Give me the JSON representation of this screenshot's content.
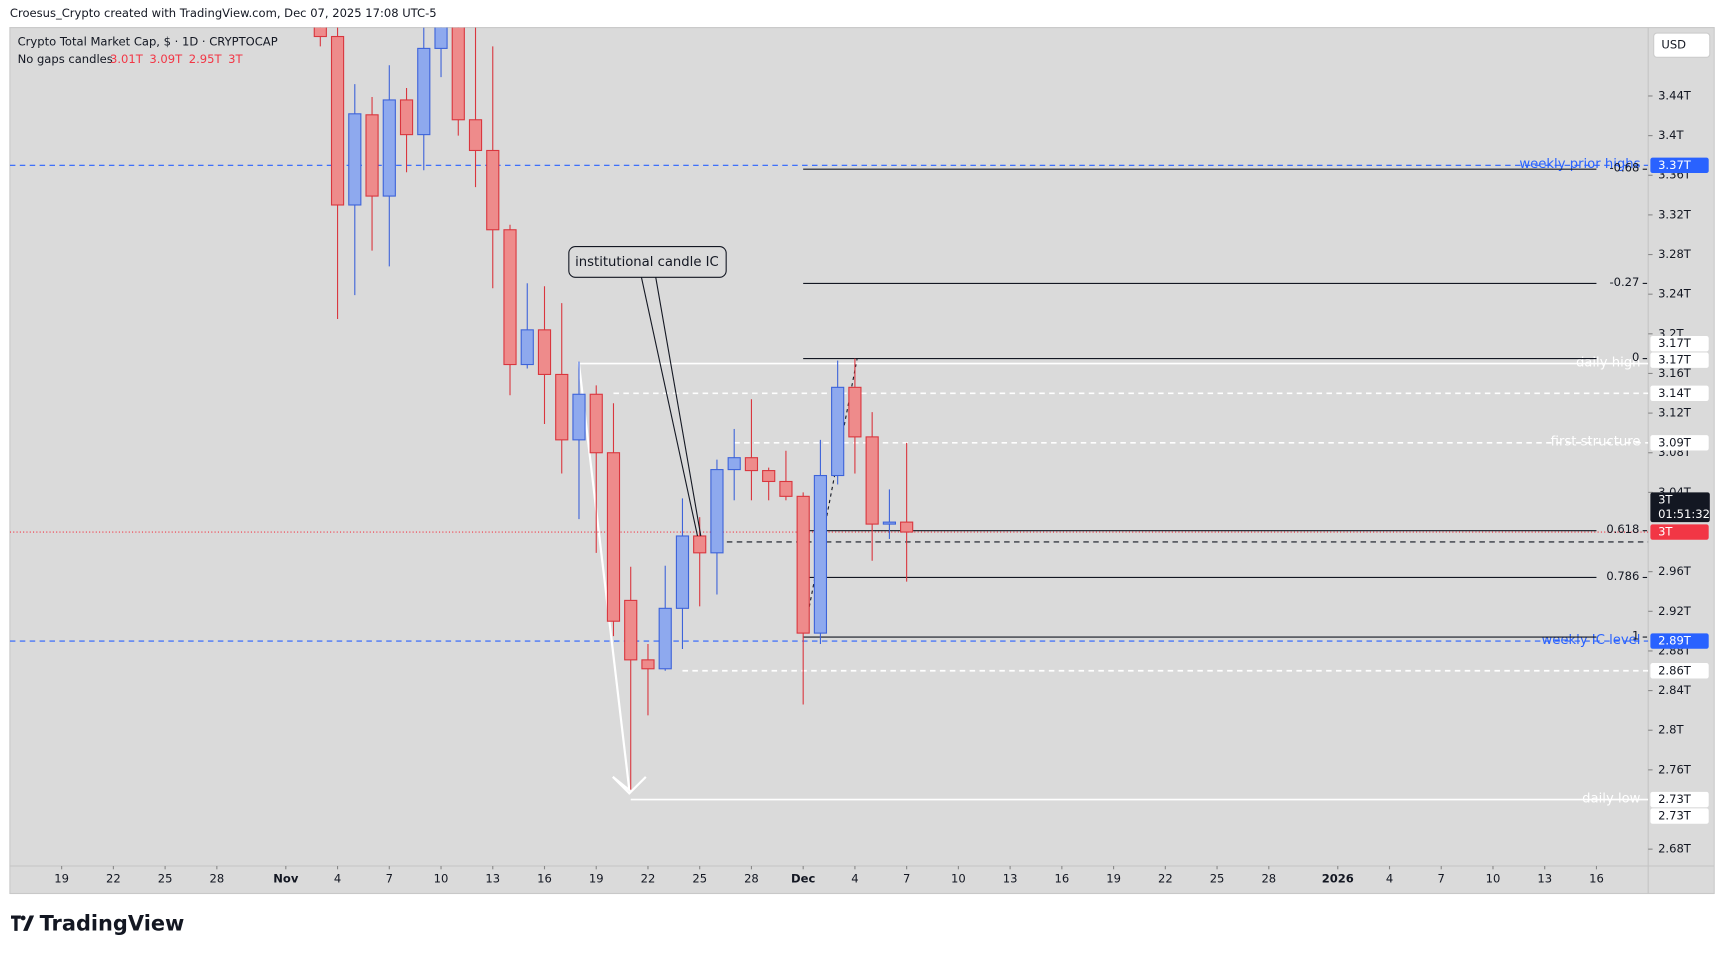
{
  "header": {
    "credit": "Croesus_Crypto created with TradingView.com, Dec 07, 2025 17:08 UTC-5",
    "logo": "TradingView",
    "currency": "USD"
  },
  "chart_data": {
    "type": "candlestick",
    "legend": {
      "title": "Crypto Total Market Cap, $ · 1D · CRYPTOCAP",
      "style": "No gaps candles",
      "values": [
        "3.01T",
        "3.09T",
        "2.95T",
        "3T"
      ]
    },
    "x": [
      "2025-11-03",
      "2025-11-04",
      "2025-11-05",
      "2025-11-06",
      "2025-11-07",
      "2025-11-08",
      "2025-11-09",
      "2025-11-10",
      "2025-11-11",
      "2025-11-12",
      "2025-11-13",
      "2025-11-14",
      "2025-11-15",
      "2025-11-16",
      "2025-11-17",
      "2025-11-18",
      "2025-11-19",
      "2025-11-20",
      "2025-11-21",
      "2025-11-22",
      "2025-11-23",
      "2025-11-24",
      "2025-11-25",
      "2025-11-26",
      "2025-11-27",
      "2025-11-28",
      "2025-11-29",
      "2025-11-30",
      "2025-12-01",
      "2025-12-02",
      "2025-12-03",
      "2025-12-04",
      "2025-12-05",
      "2025-12-06",
      "2025-12-07"
    ],
    "open": [
      3.52,
      3.5,
      3.33,
      3.421,
      3.339,
      3.436,
      3.401,
      3.488,
      3.52,
      3.416,
      3.385,
      3.305,
      3.169,
      3.204,
      3.159,
      3.093,
      3.139,
      3.08,
      2.931,
      2.871,
      2.862,
      2.923,
      2.996,
      2.979,
      3.063,
      3.075,
      3.062,
      3.051,
      3.036,
      2.898,
      3.057,
      3.146,
      3.096,
      3.008,
      3.01
    ],
    "high": [
      3.55,
      3.52,
      3.452,
      3.439,
      3.471,
      3.448,
      3.509,
      3.55,
      3.55,
      3.51,
      3.49,
      3.31,
      3.251,
      3.248,
      3.231,
      3.172,
      3.148,
      3.13,
      2.965,
      2.887,
      2.966,
      3.034,
      3.015,
      3.073,
      3.104,
      3.134,
      3.065,
      3.082,
      3.04,
      3.093,
      3.173,
      3.175,
      3.121,
      3.043,
      3.09
    ],
    "low": [
      3.49,
      3.215,
      3.239,
      3.284,
      3.268,
      3.363,
      3.365,
      3.459,
      3.4,
      3.348,
      3.246,
      3.138,
      3.165,
      3.109,
      3.059,
      3.013,
      2.979,
      2.895,
      2.74,
      2.815,
      2.86,
      2.882,
      2.925,
      2.937,
      3.032,
      3.032,
      3.032,
      3.032,
      2.826,
      2.887,
      3.048,
      3.059,
      2.971,
      2.993,
      2.95
    ],
    "close": [
      3.5,
      3.33,
      3.422,
      3.339,
      3.436,
      3.401,
      3.488,
      3.52,
      3.416,
      3.385,
      3.305,
      3.169,
      3.204,
      3.159,
      3.093,
      3.139,
      3.08,
      2.91,
      2.871,
      2.862,
      2.923,
      2.996,
      2.979,
      3.063,
      3.075,
      3.062,
      3.051,
      3.036,
      2.898,
      3.057,
      3.146,
      3.096,
      3.008,
      3.01,
      3.0
    ],
    "up_color": "#8ea9ee",
    "up_border": "#3d63d9",
    "down_color": "#ee8b8b",
    "down_border": "#d9363e",
    "xlim": [
      "2025-10-16",
      "2026-01-19"
    ],
    "xticks": [
      {
        "value": "2025-10-19",
        "label": "19"
      },
      {
        "value": "2025-10-22",
        "label": "22"
      },
      {
        "value": "2025-10-25",
        "label": "25"
      },
      {
        "value": "2025-10-28",
        "label": "28"
      },
      {
        "value": "2025-11-01",
        "label": "Nov"
      },
      {
        "value": "2025-11-04",
        "label": "4"
      },
      {
        "value": "2025-11-07",
        "label": "7"
      },
      {
        "value": "2025-11-10",
        "label": "10"
      },
      {
        "value": "2025-11-13",
        "label": "13"
      },
      {
        "value": "2025-11-16",
        "label": "16"
      },
      {
        "value": "2025-11-19",
        "label": "19"
      },
      {
        "value": "2025-11-22",
        "label": "22"
      },
      {
        "value": "2025-11-25",
        "label": "25"
      },
      {
        "value": "2025-11-28",
        "label": "28"
      },
      {
        "value": "2025-12-01",
        "label": "Dec"
      },
      {
        "value": "2025-12-04",
        "label": "4"
      },
      {
        "value": "2025-12-07",
        "label": "7"
      },
      {
        "value": "2025-12-10",
        "label": "10"
      },
      {
        "value": "2025-12-13",
        "label": "13"
      },
      {
        "value": "2025-12-16",
        "label": "16"
      },
      {
        "value": "2025-12-19",
        "label": "19"
      },
      {
        "value": "2025-12-22",
        "label": "22"
      },
      {
        "value": "2025-12-25",
        "label": "25"
      },
      {
        "value": "2025-12-28",
        "label": "28"
      },
      {
        "value": "2026-01-01",
        "label": "2026"
      },
      {
        "value": "2026-01-04",
        "label": "4"
      },
      {
        "value": "2026-01-07",
        "label": "7"
      },
      {
        "value": "2026-01-10",
        "label": "10"
      },
      {
        "value": "2026-01-13",
        "label": "13"
      },
      {
        "value": "2026-01-16",
        "label": "16"
      }
    ],
    "ylim": [
      2.663,
      3.509
    ],
    "yticks": [
      {
        "value": 3.44,
        "label": "3.44T"
      },
      {
        "value": 3.4,
        "label": "3.4T"
      },
      {
        "value": 3.36,
        "label": "3.36T"
      },
      {
        "value": 3.32,
        "label": "3.32T"
      },
      {
        "value": 3.28,
        "label": "3.28T"
      },
      {
        "value": 3.24,
        "label": "3.24T"
      },
      {
        "value": 3.2,
        "label": "3.2T"
      },
      {
        "value": 3.16,
        "label": "3.16T"
      },
      {
        "value": 3.12,
        "label": "3.12T"
      },
      {
        "value": 3.08,
        "label": "3.08T"
      },
      {
        "value": 3.04,
        "label": "3.04T"
      },
      {
        "value": 2.96,
        "label": "2.96T"
      },
      {
        "value": 2.92,
        "label": "2.92T"
      },
      {
        "value": 2.88,
        "label": "2.88T"
      },
      {
        "value": 2.84,
        "label": "2.84T"
      },
      {
        "value": 2.8,
        "label": "2.8T"
      },
      {
        "value": 2.76,
        "label": "2.76T"
      },
      {
        "value": 2.68,
        "label": "2.68T"
      }
    ],
    "lines": [
      {
        "label": "weekly prior highs",
        "price": 3.37,
        "color": "#2962ff",
        "style": "dashed",
        "start": "2025-10-16"
      },
      {
        "label": "daily high",
        "price": 3.17,
        "color": "#ffffff",
        "style": "solid",
        "start": "2025-11-18"
      },
      {
        "label": "first structure",
        "price": 3.09,
        "color": "#ffffff",
        "style": "dashed",
        "start": "2025-11-27"
      },
      {
        "label": "weekly IC level",
        "price": 2.89,
        "color": "#2962ff",
        "style": "dashed",
        "start": "2025-10-16"
      },
      {
        "label": "daily low",
        "price": 2.73,
        "color": "#ffffff",
        "style": "solid",
        "start": "2025-11-21"
      },
      {
        "price": 3.14,
        "color": "#ffffff",
        "style": "dashed",
        "start": "2025-11-20"
      },
      {
        "price": 2.86,
        "color": "#ffffff",
        "style": "dashed",
        "start": "2025-11-24"
      },
      {
        "price": 2.99,
        "color": "#131722",
        "style": "dashed",
        "start": "2025-11-26"
      },
      {
        "price": 3.0,
        "color": "#f23645",
        "style": "dotted",
        "start": "2025-10-16"
      }
    ],
    "fib": {
      "start": "2025-12-01",
      "end": "2026-01-16",
      "p0": 3.175,
      "p1": 2.894,
      "levels": [
        -0.68,
        -0.27,
        0,
        0.618,
        0.786,
        1
      ]
    },
    "annotation": {
      "text": "institutional candle IC",
      "target": "2025-11-25",
      "price": 2.996
    },
    "badges": [
      {
        "label": "3.37T",
        "price": 3.37,
        "bg": "#2962ff",
        "fg": "#ffffff"
      },
      {
        "label": "3.17T",
        "price": 3.19,
        "bg": "#ffffff",
        "fg": "#131722"
      },
      {
        "label": "3.17T",
        "price": 3.175,
        "bg": "#ffffff",
        "fg": "#131722"
      },
      {
        "label": "3.14T",
        "price": 3.14,
        "bg": "#ffffff",
        "fg": "#131722"
      },
      {
        "label": "3.09T",
        "price": 3.09,
        "bg": "#ffffff",
        "fg": "#131722"
      },
      {
        "label": "3T",
        "price": 3.0,
        "bg": "#f23645",
        "fg": "#ffffff"
      },
      {
        "label": "2.89T",
        "price": 2.89,
        "bg": "#2962ff",
        "fg": "#ffffff"
      },
      {
        "label": "2.86T",
        "price": 2.86,
        "bg": "#ffffff",
        "fg": "#131722"
      },
      {
        "label": "2.73T",
        "price": 2.73,
        "bg": "#ffffff",
        "fg": "#131722"
      },
      {
        "label": "2.73T",
        "price": 2.74,
        "bg": "#ffffff",
        "fg": "#131722"
      }
    ],
    "current": {
      "label": "3T",
      "countdown": "01:51:32",
      "price": 3.0
    }
  }
}
